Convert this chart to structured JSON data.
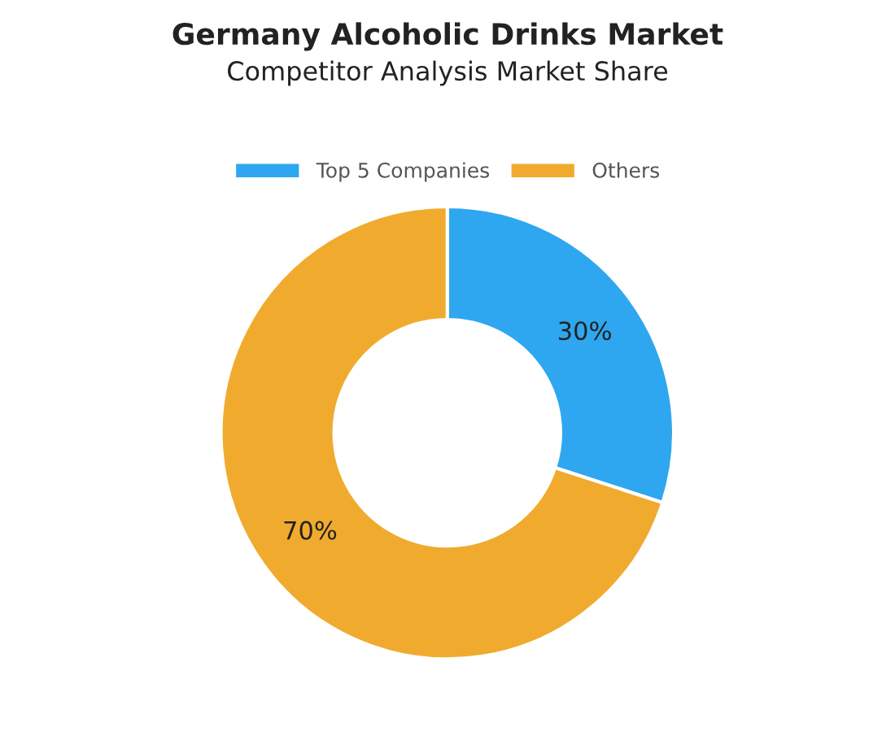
{
  "chart_data": {
    "type": "donut",
    "title": "Germany Alcoholic Drinks Market",
    "subtitle": "Competitor Analysis Market Share",
    "categories": [
      "Top 5 Companies",
      "Others"
    ],
    "values": [
      30,
      70
    ],
    "colors": [
      "#2ea7f0",
      "#f0ab2e"
    ],
    "value_labels": [
      "30%",
      "70%"
    ],
    "legend": "top"
  }
}
